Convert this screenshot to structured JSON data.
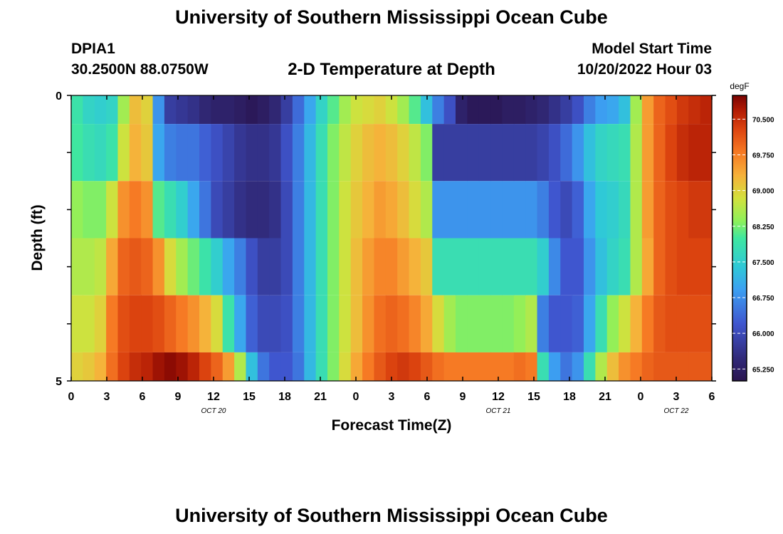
{
  "page": {
    "title": "University of Southern Mississippi Ocean Cube",
    "title_repeat": "University of Southern Mississippi Ocean Cube",
    "station_id": "DPIA1",
    "coordinates": "30.2500N  88.0750W",
    "subtitle": "2-D Temperature at Depth",
    "model_start_label": "Model Start Time",
    "model_start_value": "10/20/2022 Hour 03"
  },
  "chart_data": {
    "type": "heatmap",
    "title": "2-D Temperature at Depth",
    "xlabel": "Forecast Time(Z)",
    "ylabel": "Depth (ft)",
    "xlim": [
      0,
      54
    ],
    "ylim": [
      0,
      5
    ],
    "x_ticks": [
      {
        "hour": 0,
        "label": "0"
      },
      {
        "hour": 3,
        "label": "3"
      },
      {
        "hour": 6,
        "label": "6"
      },
      {
        "hour": 9,
        "label": "9"
      },
      {
        "hour": 12,
        "label": "12"
      },
      {
        "hour": 15,
        "label": "15"
      },
      {
        "hour": 18,
        "label": "18"
      },
      {
        "hour": 21,
        "label": "21"
      },
      {
        "hour": 24,
        "label": "0"
      },
      {
        "hour": 27,
        "label": "3"
      },
      {
        "hour": 30,
        "label": "6"
      },
      {
        "hour": 33,
        "label": "9"
      },
      {
        "hour": 36,
        "label": "12"
      },
      {
        "hour": 39,
        "label": "15"
      },
      {
        "hour": 42,
        "label": "18"
      },
      {
        "hour": 45,
        "label": "21"
      },
      {
        "hour": 48,
        "label": "0"
      },
      {
        "hour": 51,
        "label": "3"
      },
      {
        "hour": 54,
        "label": "6"
      }
    ],
    "y_ticks": [
      {
        "depth": 0,
        "label": "0"
      },
      {
        "depth": 5,
        "label": "5"
      }
    ],
    "date_labels": [
      {
        "hour": 12,
        "label": "OCT 20"
      },
      {
        "hour": 36,
        "label": "OCT 21"
      },
      {
        "hour": 51,
        "label": "OCT 22"
      }
    ],
    "colorbar": {
      "unit": "degF",
      "min": 65.0,
      "max": 71.0,
      "tick_values": [
        65.25,
        66.0,
        66.75,
        67.5,
        68.25,
        69.0,
        69.75,
        70.5
      ],
      "tick_labels": [
        "65.250",
        "66.000",
        "66.750",
        "67.500",
        "68.250",
        "69.000",
        "69.750",
        "70.500"
      ]
    },
    "depth_rows": [
      {
        "depth_range": [
          0.0,
          0.5
        ],
        "temps": [
          67.9,
          67.6,
          67.5,
          67.6,
          68.5,
          69.2,
          69.0,
          66.8,
          65.8,
          65.7,
          65.6,
          65.4,
          65.3,
          65.3,
          65.2,
          65.1,
          65.2,
          65.4,
          65.8,
          66.4,
          67.0,
          67.6,
          68.1,
          68.5,
          68.8,
          68.9,
          69.0,
          68.8,
          68.5,
          68.1,
          67.3,
          66.6,
          66.1,
          65.3,
          65.1,
          65.1,
          65.1,
          65.2,
          65.2,
          65.3,
          65.4,
          65.6,
          65.8,
          66.1,
          66.6,
          66.9,
          67.0,
          67.3,
          68.5,
          69.5,
          70.0,
          70.2,
          70.4,
          70.5,
          70.6
        ]
      },
      {
        "depth_range": [
          0.5,
          1.5
        ],
        "temps": [
          68.0,
          67.8,
          67.7,
          67.9,
          68.8,
          69.3,
          69.1,
          67.0,
          66.6,
          66.5,
          66.5,
          66.3,
          66.1,
          65.9,
          65.7,
          65.6,
          65.6,
          65.7,
          66.1,
          66.6,
          67.2,
          67.8,
          68.3,
          68.7,
          69.0,
          69.2,
          69.3,
          69.2,
          69.0,
          68.7,
          68.3,
          65.8,
          65.8,
          65.8,
          65.8,
          65.8,
          65.8,
          65.8,
          65.8,
          65.8,
          65.9,
          66.1,
          66.4,
          66.8,
          67.3,
          67.6,
          67.7,
          67.8,
          68.6,
          69.5,
          70.0,
          70.3,
          70.5,
          70.6,
          70.6
        ]
      },
      {
        "depth_range": [
          1.5,
          2.5
        ],
        "temps": [
          68.4,
          68.3,
          68.3,
          68.8,
          69.6,
          69.8,
          69.6,
          68.1,
          67.8,
          67.5,
          67.0,
          66.5,
          66.0,
          65.8,
          65.6,
          65.5,
          65.5,
          65.6,
          66.0,
          66.6,
          67.2,
          67.8,
          68.3,
          68.8,
          69.1,
          69.3,
          69.5,
          69.4,
          69.2,
          68.9,
          68.6,
          66.8,
          66.8,
          66.8,
          66.8,
          66.8,
          66.8,
          66.8,
          66.8,
          66.8,
          66.6,
          66.2,
          66.0,
          66.3,
          67.0,
          67.4,
          67.5,
          67.7,
          68.6,
          69.5,
          70.0,
          70.2,
          70.3,
          70.4,
          70.4
        ]
      },
      {
        "depth_range": [
          2.5,
          3.5
        ],
        "temps": [
          68.6,
          68.6,
          68.7,
          69.4,
          70.0,
          70.1,
          70.0,
          69.6,
          68.9,
          68.5,
          68.2,
          67.9,
          67.5,
          67.0,
          66.6,
          66.1,
          65.8,
          65.8,
          66.0,
          66.6,
          67.2,
          67.8,
          68.3,
          68.8,
          69.2,
          69.5,
          69.7,
          69.7,
          69.5,
          69.3,
          69.1,
          67.8,
          67.8,
          67.8,
          67.8,
          67.8,
          67.8,
          67.8,
          67.8,
          67.8,
          67.5,
          66.7,
          66.2,
          66.2,
          66.8,
          67.3,
          67.6,
          67.8,
          68.6,
          69.4,
          70.0,
          70.2,
          70.3,
          70.3,
          70.3
        ]
      },
      {
        "depth_range": [
          3.5,
          4.5
        ],
        "temps": [
          68.8,
          68.8,
          69.0,
          69.8,
          70.2,
          70.3,
          70.3,
          70.2,
          70.0,
          69.8,
          69.6,
          69.3,
          68.9,
          67.9,
          67.0,
          66.3,
          66.0,
          66.0,
          66.1,
          66.6,
          67.2,
          67.8,
          68.3,
          68.8,
          69.2,
          69.6,
          69.9,
          70.0,
          69.9,
          69.7,
          69.4,
          68.9,
          68.5,
          68.3,
          68.3,
          68.3,
          68.3,
          68.3,
          68.4,
          68.6,
          66.6,
          66.2,
          66.2,
          66.3,
          67.0,
          67.8,
          68.4,
          68.8,
          69.3,
          69.8,
          70.1,
          70.2,
          70.2,
          70.2,
          70.2
        ]
      },
      {
        "depth_range": [
          4.5,
          5.0
        ],
        "temps": [
          69.0,
          69.1,
          69.3,
          69.9,
          70.3,
          70.5,
          70.6,
          70.8,
          70.9,
          70.8,
          70.6,
          70.3,
          70.0,
          69.5,
          68.6,
          67.3,
          66.5,
          66.2,
          66.2,
          66.5,
          67.2,
          67.8,
          68.3,
          68.9,
          69.4,
          69.8,
          70.1,
          70.3,
          70.4,
          70.3,
          70.1,
          69.9,
          69.8,
          69.8,
          69.8,
          69.8,
          69.8,
          69.8,
          69.9,
          69.8,
          67.8,
          66.9,
          66.5,
          66.8,
          67.8,
          68.6,
          69.2,
          69.6,
          69.8,
          70.0,
          70.1,
          70.1,
          70.1,
          70.1,
          70.1
        ]
      }
    ]
  }
}
